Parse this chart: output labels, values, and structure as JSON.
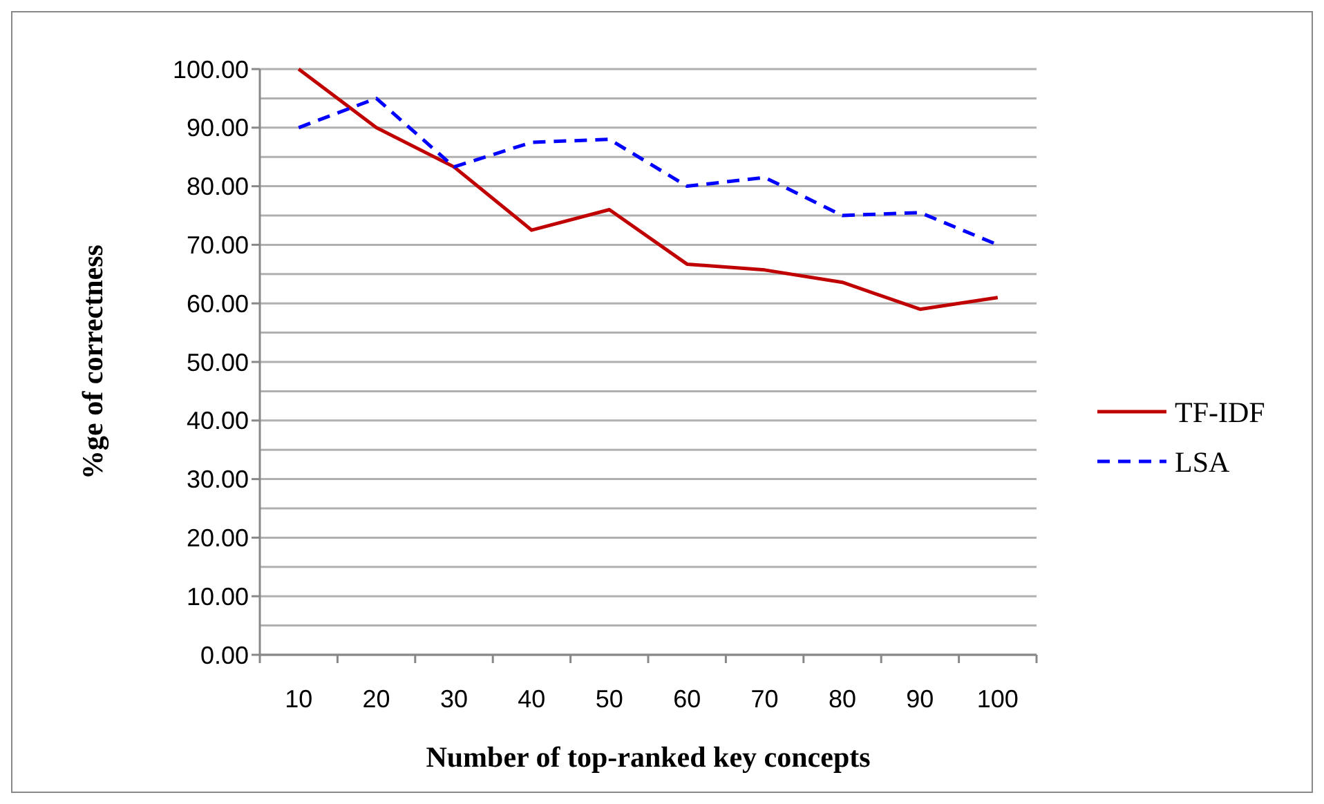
{
  "chart_data": {
    "type": "line",
    "xlabel": "Number of top-ranked key concepts",
    "ylabel": "%ge of correctness",
    "categories": [
      "10",
      "20",
      "30",
      "40",
      "50",
      "60",
      "70",
      "80",
      "90",
      "100"
    ],
    "series": [
      {
        "name": "TF-IDF",
        "color": "#c00000",
        "line_style": "solid",
        "values": [
          100,
          90,
          83.3,
          72.5,
          76,
          66.7,
          65.7,
          63.6,
          59,
          61
        ]
      },
      {
        "name": "LSA",
        "color": "#0000ff",
        "line_style": "dashed",
        "values": [
          90,
          95,
          83.3,
          87.5,
          88,
          80,
          81.5,
          75,
          75.5,
          70
        ]
      }
    ],
    "ylim": [
      0,
      100
    ],
    "yticks": [
      {
        "value": 0,
        "label": "0.00"
      },
      {
        "value": 5,
        "label": null
      },
      {
        "value": 10,
        "label": "10.00"
      },
      {
        "value": 15,
        "label": null
      },
      {
        "value": 20,
        "label": "20.00"
      },
      {
        "value": 25,
        "label": null
      },
      {
        "value": 30,
        "label": "30.00"
      },
      {
        "value": 35,
        "label": null
      },
      {
        "value": 40,
        "label": "40.00"
      },
      {
        "value": 45,
        "label": null
      },
      {
        "value": 50,
        "label": "50.00"
      },
      {
        "value": 55,
        "label": null
      },
      {
        "value": 60,
        "label": "60.00"
      },
      {
        "value": 65,
        "label": null
      },
      {
        "value": 70,
        "label": "70.00"
      },
      {
        "value": 75,
        "label": null
      },
      {
        "value": 80,
        "label": "80.00"
      },
      {
        "value": 85,
        "label": null
      },
      {
        "value": 90,
        "label": "90.00"
      },
      {
        "value": 95,
        "label": null
      },
      {
        "value": 100,
        "label": "100.00"
      }
    ],
    "grid": true,
    "legend": "right"
  }
}
